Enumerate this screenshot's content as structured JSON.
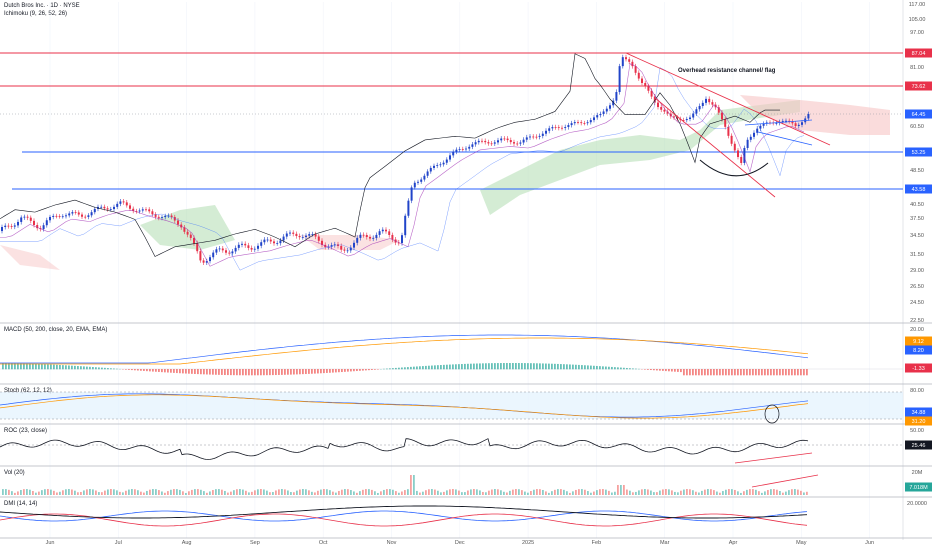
{
  "header": {
    "title": "Dutch Bros Inc. · 1D · NYSE",
    "indicator": "Ichimoku (9, 26, 52, 26)"
  },
  "colors": {
    "up": "#2144c9",
    "down": "#e8314a",
    "resistance": "#e8314a",
    "support": "#2962ff",
    "cloud_green": "#b7e0b8",
    "cloud_red": "#f7c5c5"
  },
  "chart_data": {
    "type": "candlestick",
    "annotation": "Overhead resistance channel/ flag",
    "x_tick_labels": [
      "Jun",
      "Jul",
      "Aug",
      "Sep",
      "Oct",
      "Nov",
      "Dec",
      "2025",
      "Feb",
      "Mar",
      "Apr",
      "May",
      "Jun"
    ],
    "y_tick_labels": [
      "117.00",
      "105.00",
      "97.00",
      "81.00",
      "60.50",
      "48.50",
      "40.50",
      "37.50",
      "34.50",
      "31.50",
      "29.00",
      "26.50",
      "24.50",
      "22.50"
    ],
    "price_tags": [
      {
        "value": "87.04",
        "color": "#e8314a"
      },
      {
        "value": "73.62",
        "color": "#e8314a"
      },
      {
        "value": "64.45",
        "color": "#2962ff"
      },
      {
        "value": "53.25",
        "color": "#2962ff"
      },
      {
        "value": "43.58",
        "color": "#2962ff"
      }
    ],
    "horizontal_levels": [
      87.04,
      73.62,
      53.25,
      43.58
    ],
    "panels": [
      {
        "name": "MACD (50, 200, close, 20, EMA, EMA)",
        "axis": [
          "20.00"
        ],
        "tags": [
          {
            "value": "9.12",
            "color": "#ff9800"
          },
          {
            "value": "8.20",
            "color": "#2962ff"
          },
          {
            "value": "-1.33",
            "color": "#e8314a"
          }
        ]
      },
      {
        "name": "Stoch (62, 12, 12)",
        "axis": [
          "80.00"
        ],
        "tags": [
          {
            "value": "34.88",
            "color": "#2962ff"
          },
          {
            "value": "31.20",
            "color": "#ff9800"
          }
        ]
      },
      {
        "name": "ROC (23, close)",
        "axis": [
          "50.00"
        ],
        "tags": [
          {
            "value": "25.46",
            "color": "#131722"
          }
        ]
      },
      {
        "name": "Vol (20)",
        "axis": [
          "20M"
        ],
        "tags": [
          {
            "value": "7.018M",
            "color": "#26a69a"
          }
        ]
      },
      {
        "name": "DMI (14, 14)",
        "axis": [
          "20.0000"
        ],
        "tags": []
      }
    ]
  }
}
